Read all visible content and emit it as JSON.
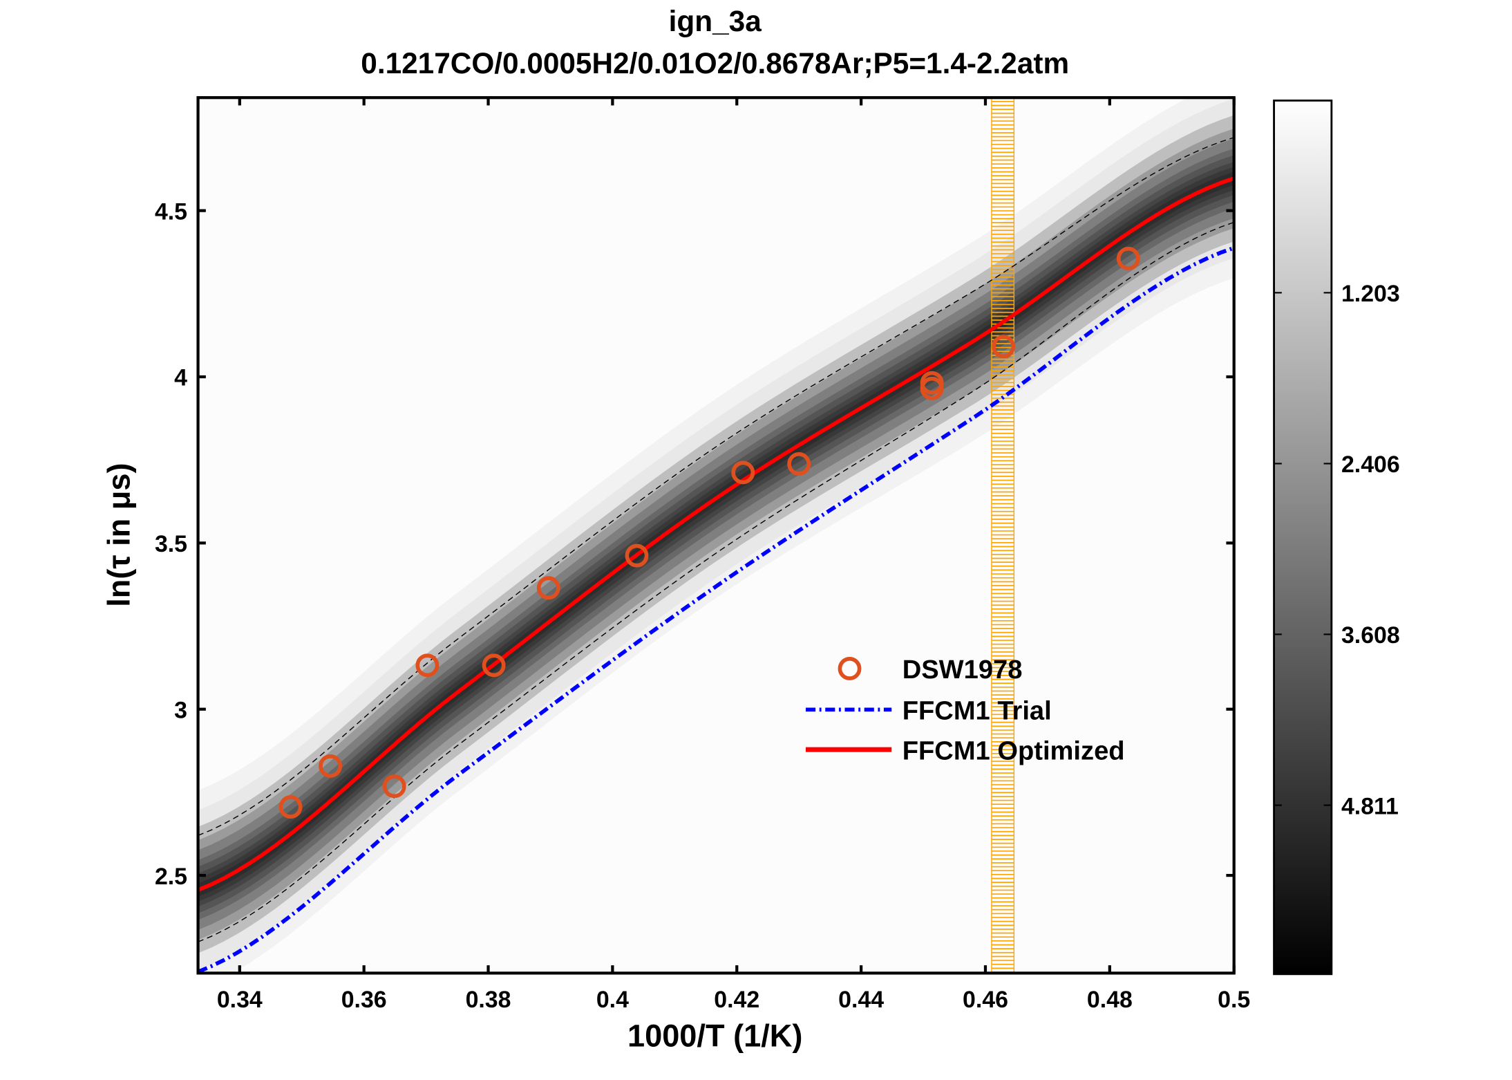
{
  "chart_data": {
    "type": "line",
    "title": "ign_3a",
    "subtitle": "0.1217CO/0.0005H2/0.01O2/0.8678Ar;P5=1.4-2.2atm",
    "xlabel": "1000/T (1/K)",
    "ylabel": "ln(τ in μs)",
    "xlim": [
      0.3333,
      0.5
    ],
    "ylim": [
      2.206,
      4.84
    ],
    "xticks": [
      "0.34",
      "0.36",
      "0.38",
      "0.4",
      "0.42",
      "0.44",
      "0.46",
      "0.48",
      "0.5"
    ],
    "yticks": [
      "2.5",
      "3",
      "3.5",
      "4",
      "4.5"
    ],
    "grid": false,
    "legend_position": "lower-right",
    "series": [
      {
        "name": "DSW1978",
        "kind": "scatter",
        "marker": "open-circle",
        "color": "#e0501e",
        "x": [
          0.3482,
          0.3546,
          0.3649,
          0.3702,
          0.3809,
          0.3897,
          0.4039,
          0.421,
          0.43,
          0.4514,
          0.4514,
          0.4629,
          0.483
        ],
        "y": [
          2.706,
          2.829,
          2.768,
          3.132,
          3.132,
          3.365,
          3.462,
          3.712,
          3.738,
          3.982,
          3.965,
          4.091,
          4.356
        ]
      },
      {
        "name": "FFCM1 Trial",
        "kind": "line",
        "style": "dash-dot",
        "color": "#0000ff",
        "x": [
          0.3333,
          0.375,
          0.4167,
          0.4583,
          0.5
        ],
        "y": [
          2.21,
          2.8,
          3.37,
          3.88,
          4.388
        ]
      },
      {
        "name": "FFCM1 Optimized",
        "kind": "line",
        "style": "solid",
        "color": "#ff0000",
        "x": [
          0.3333,
          0.375,
          0.4167,
          0.4583,
          0.5
        ],
        "y": [
          2.456,
          3.05,
          3.635,
          4.11,
          4.597
        ]
      }
    ],
    "uncertainty_bounds": {
      "style": "dashed",
      "color": "#000000",
      "x": [
        0.3333,
        0.375,
        0.4167,
        0.4583,
        0.5
      ],
      "upper": [
        2.62,
        3.21,
        3.79,
        4.26,
        4.72
      ],
      "lower": [
        2.3,
        2.89,
        3.47,
        3.96,
        4.465
      ]
    },
    "highlight_band": {
      "x_range": [
        0.461,
        0.4646
      ],
      "color": "#ffa500",
      "style": "hatched"
    },
    "colorbar": {
      "colormap": "gray-reversed",
      "range": [
        -0.15,
        6.0
      ],
      "ticks": [
        "1.203",
        "2.406",
        "3.608",
        "4.811"
      ]
    }
  }
}
